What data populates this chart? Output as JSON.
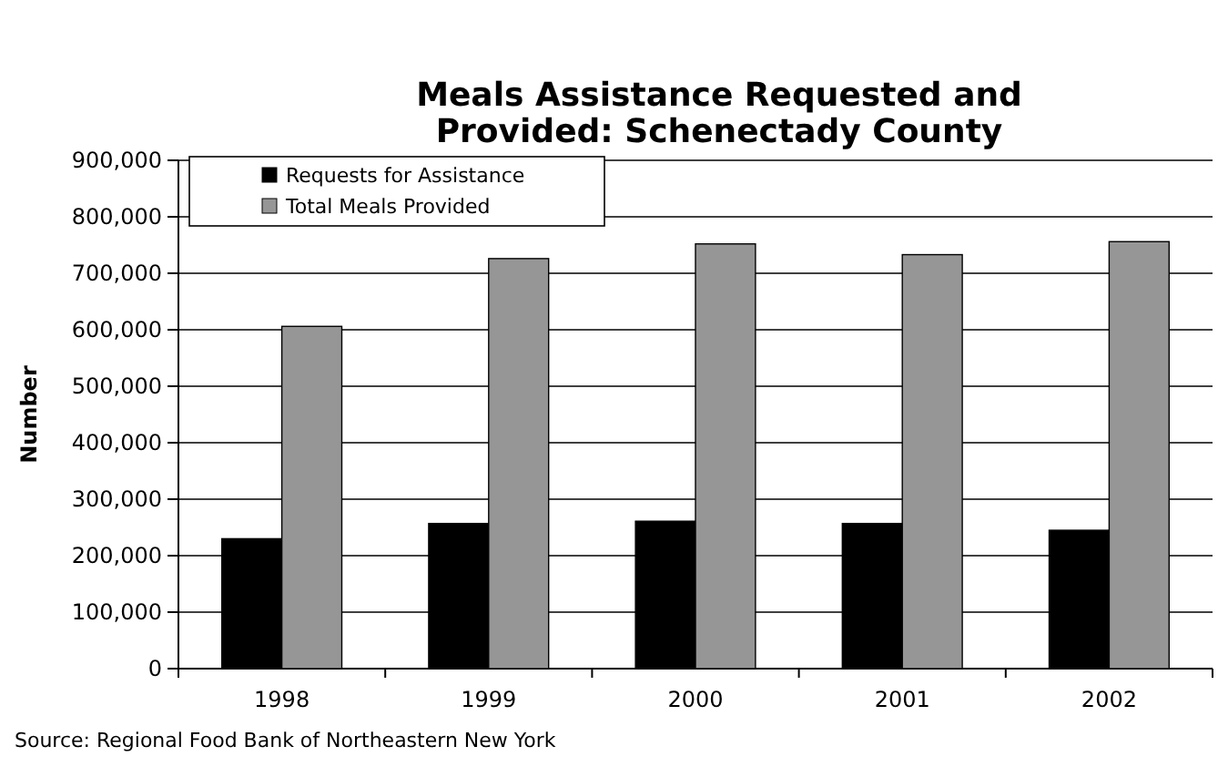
{
  "chart_data": {
    "type": "bar",
    "title": "Meals Assistance Requested and Provided: Schenectady County",
    "ylabel": "Number",
    "categories": [
      "1998",
      "1999",
      "2000",
      "2001",
      "2002"
    ],
    "series": [
      {
        "name": "Requests for Assistance",
        "color": "#000000",
        "values": [
          230000,
          257000,
          261000,
          257000,
          245000
        ]
      },
      {
        "name": "Total Meals Provided",
        "color": "#969696",
        "values": [
          606000,
          726000,
          752000,
          733000,
          756000
        ]
      }
    ],
    "ylim": [
      0,
      900000
    ],
    "yticks": [
      {
        "value": 0,
        "label": "0"
      },
      {
        "value": 100000,
        "label": "100,000"
      },
      {
        "value": 200000,
        "label": "200,000"
      },
      {
        "value": 300000,
        "label": "300,000"
      },
      {
        "value": 400000,
        "label": "400,000"
      },
      {
        "value": 500000,
        "label": "500,000"
      },
      {
        "value": 600000,
        "label": "600,000"
      },
      {
        "value": 700000,
        "label": "700,000"
      },
      {
        "value": 800000,
        "label": "800,000"
      },
      {
        "value": 900000,
        "label": "900,000"
      }
    ],
    "grid": "y",
    "legend": "top left",
    "annotations": [
      "Source: Regional Food Bank of Northeastern New York"
    ]
  }
}
